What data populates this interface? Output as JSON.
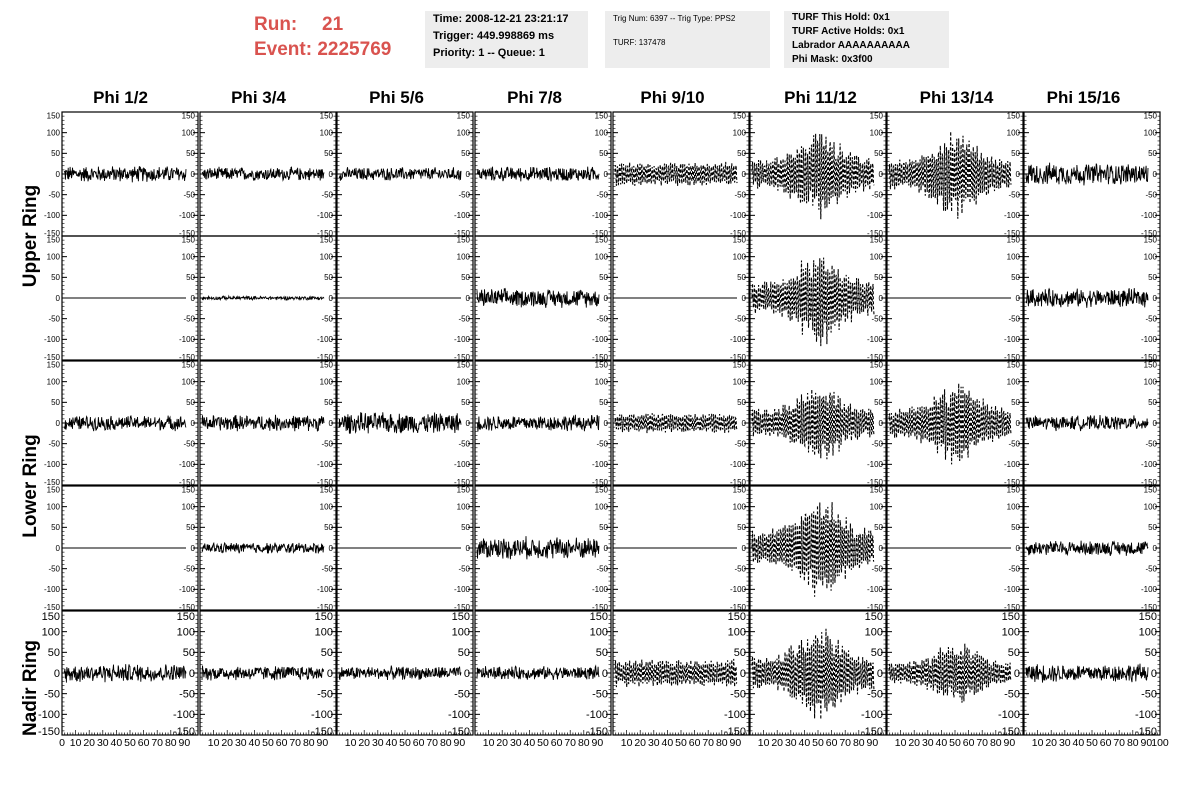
{
  "header": {
    "run_label": "Run:",
    "run_value": "21",
    "event_label": "Event:",
    "event_value": "2225769",
    "info1": [
      "Time: 2008-12-21 23:21:17",
      "Trigger: 449.998869 ms",
      "Priority: 1 -- Queue: 1"
    ],
    "info2": [
      "Trig Num: 6397 -- Trig Type: PPS2",
      "",
      "TURF: 137478"
    ],
    "info3": [
      "TURF This Hold: 0x1",
      "TURF Active Holds: 0x1",
      "Labrador AAAAAAAAAA",
      "Phi Mask: 0x3f00"
    ]
  },
  "chart_data": {
    "type": "line",
    "columns": [
      "Phi 1/2",
      "Phi 3/4",
      "Phi 5/6",
      "Phi 7/8",
      "Phi 9/10",
      "Phi 11/12",
      "Phi 13/14",
      "Phi 15/16"
    ],
    "ring_labels": [
      "Upper Ring",
      "Lower Ring",
      "Nadir Ring"
    ],
    "ylim": [
      -150,
      150
    ],
    "xlim": [
      0,
      100
    ],
    "y_ticks": [
      -150,
      -100,
      -50,
      0,
      50,
      100,
      150
    ],
    "x_tick_labels": [
      "0",
      "10",
      "20",
      "30",
      "40",
      "50",
      "60",
      "70",
      "80",
      "90",
      "100"
    ],
    "grid": false,
    "rows": [
      [
        {
          "amp": 22,
          "style": "solid"
        },
        {
          "amp": 18,
          "style": "solid"
        },
        {
          "amp": 18,
          "style": "solid"
        },
        {
          "amp": 20,
          "style": "solid"
        },
        {
          "amp": 30,
          "style": "dashed"
        },
        {
          "amp": 110,
          "style": "dashed"
        },
        {
          "amp": 110,
          "style": "dashed"
        },
        {
          "amp": 30,
          "style": "solid"
        }
      ],
      [
        {
          "amp": 0,
          "style": "solid"
        },
        {
          "amp": 5,
          "style": "solid"
        },
        {
          "amp": 0,
          "style": "solid"
        },
        {
          "amp": 25,
          "style": "solid"
        },
        {
          "amp": 0,
          "style": "solid"
        },
        {
          "amp": 120,
          "style": "dashed"
        },
        {
          "amp": 0,
          "style": "solid"
        },
        {
          "amp": 25,
          "style": "solid"
        }
      ],
      [
        {
          "amp": 20,
          "style": "solid"
        },
        {
          "amp": 22,
          "style": "solid"
        },
        {
          "amp": 28,
          "style": "solid"
        },
        {
          "amp": 22,
          "style": "solid"
        },
        {
          "amp": 25,
          "style": "dashed"
        },
        {
          "amp": 100,
          "style": "dashed"
        },
        {
          "amp": 110,
          "style": "dashed"
        },
        {
          "amp": 20,
          "style": "solid"
        }
      ],
      [
        {
          "amp": 0,
          "style": "solid"
        },
        {
          "amp": 15,
          "style": "solid"
        },
        {
          "amp": 0,
          "style": "solid"
        },
        {
          "amp": 30,
          "style": "solid"
        },
        {
          "amp": 0,
          "style": "solid"
        },
        {
          "amp": 130,
          "style": "dashed"
        },
        {
          "amp": 0,
          "style": "solid"
        },
        {
          "amp": 20,
          "style": "solid"
        }
      ],
      [
        {
          "amp": 25,
          "style": "solid"
        },
        {
          "amp": 20,
          "style": "solid"
        },
        {
          "amp": 18,
          "style": "solid"
        },
        {
          "amp": 18,
          "style": "solid"
        },
        {
          "amp": 35,
          "style": "dashed"
        },
        {
          "amp": 120,
          "style": "dashed"
        },
        {
          "amp": 80,
          "style": "dashed"
        },
        {
          "amp": 25,
          "style": "solid"
        }
      ]
    ]
  }
}
